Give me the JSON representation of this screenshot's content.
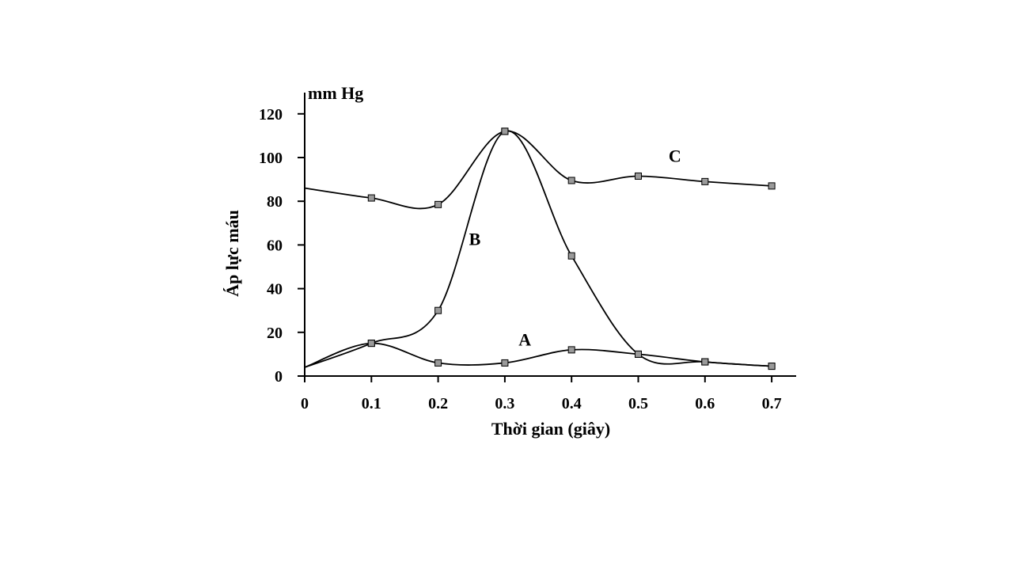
{
  "chart_data": {
    "type": "line",
    "ylabel": "Áp lực máu",
    "xlabel": "Thời gian (giây)",
    "yunit": "mm Hg",
    "x": [
      0,
      0.1,
      0.2,
      0.3,
      0.4,
      0.5,
      0.6,
      0.7
    ],
    "x_tick_labels": [
      "0",
      "0.1",
      "0.2",
      "0.3",
      "0.4",
      "0.5",
      "0.6",
      "0.7"
    ],
    "y_ticks": [
      0,
      20,
      40,
      60,
      80,
      100,
      120
    ],
    "xlim": [
      0,
      0.73
    ],
    "ylim": [
      0,
      125
    ],
    "grid": false,
    "series": [
      {
        "name": "A",
        "x": [
          0,
          0.1,
          0.2,
          0.3,
          0.4,
          0.5,
          0.6,
          0.7
        ],
        "values": [
          4,
          15,
          6,
          6,
          12,
          10,
          6.5,
          4.5
        ],
        "marked_x": [
          0.1,
          0.2,
          0.3,
          0.4,
          0.5,
          0.6,
          0.7
        ]
      },
      {
        "name": "B",
        "x": [
          0,
          0.1,
          0.2,
          0.3,
          0.4,
          0.5,
          0.6,
          0.7
        ],
        "values": [
          4,
          15,
          30,
          112,
          55,
          10,
          6.5,
          4.5
        ],
        "marked_x": [
          0.1,
          0.2,
          0.3,
          0.4,
          0.5,
          0.6,
          0.7
        ]
      },
      {
        "name": "C",
        "x": [
          0,
          0.1,
          0.2,
          0.3,
          0.4,
          0.5,
          0.6,
          0.7
        ],
        "values": [
          86,
          81.5,
          78.5,
          112,
          89.5,
          91.5,
          89,
          87
        ],
        "marked_x": [
          0.1,
          0.2,
          0.3,
          0.4,
          0.5,
          0.6,
          0.7
        ]
      }
    ],
    "annotations": [
      {
        "text": "A",
        "series": "A",
        "x": 0.33,
        "y": 14
      },
      {
        "text": "B",
        "series": "B",
        "x": 0.255,
        "y": 60
      },
      {
        "text": "C",
        "series": "C",
        "x": 0.555,
        "y": 98
      }
    ]
  }
}
